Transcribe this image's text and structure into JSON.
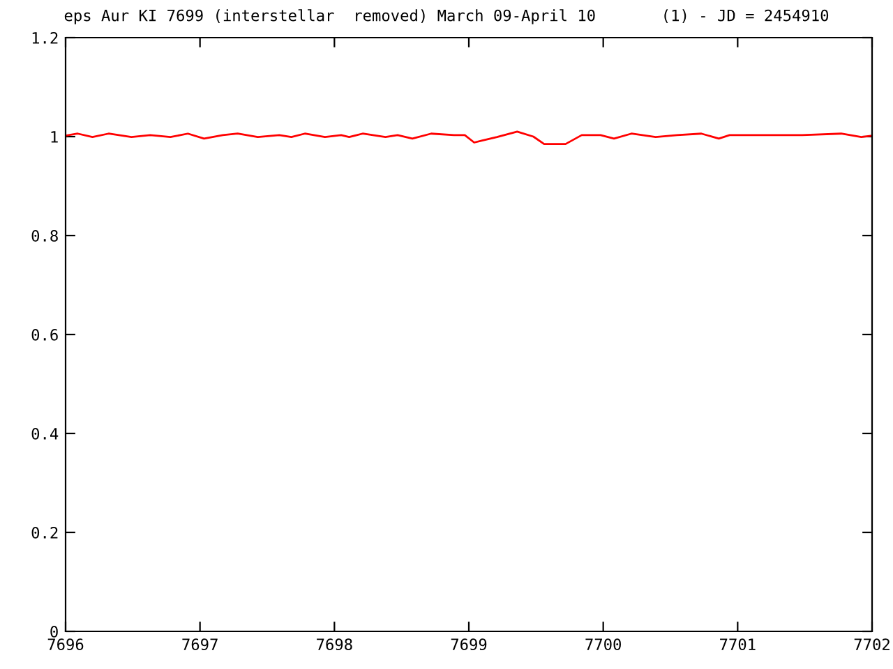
{
  "chart_data": {
    "type": "line",
    "title": "eps Aur KI 7699 (interstellar  removed) March 09-April 10       (1) - JD = 2454910",
    "series": [
      {
        "color": "#ff0000",
        "x": [
          7696.0,
          7696.09,
          7696.2,
          7696.32,
          7696.49,
          7696.63,
          7696.78,
          7696.91,
          7697.03,
          7697.17,
          7697.28,
          7697.43,
          7697.59,
          7697.68,
          7697.78,
          7697.93,
          7698.05,
          7698.11,
          7698.21,
          7698.38,
          7698.47,
          7698.58,
          7698.72,
          7698.89,
          7698.97,
          7699.04,
          7699.1,
          7699.21,
          7699.36,
          7699.48,
          7699.56,
          7699.72,
          7699.84,
          7699.98,
          7700.08,
          7700.21,
          7700.39,
          7700.55,
          7700.73,
          7700.86,
          7700.94,
          7701.22,
          7701.48,
          7701.77,
          7701.92,
          7702.0
        ],
        "values": [
          1.002,
          1.006,
          0.999,
          1.006,
          0.999,
          1.003,
          0.999,
          1.006,
          0.996,
          1.003,
          1.006,
          0.999,
          1.003,
          0.999,
          1.006,
          0.999,
          1.003,
          0.999,
          1.006,
          0.999,
          1.003,
          0.996,
          1.006,
          1.003,
          1.003,
          0.988,
          0.992,
          0.999,
          1.01,
          1.0,
          0.985,
          0.985,
          1.003,
          1.003,
          0.996,
          1.006,
          0.999,
          1.003,
          1.006,
          0.996,
          1.003,
          1.003,
          1.003,
          1.006,
          0.999,
          1.002
        ]
      }
    ],
    "xlim": [
      7696,
      7702
    ],
    "xticks": [
      7696,
      7697,
      7698,
      7699,
      7700,
      7701,
      7702
    ],
    "ylim": [
      0,
      1.2
    ],
    "yticks": [
      {
        "value": 0,
        "label": "0"
      },
      {
        "value": 0.2,
        "label": "0.2"
      },
      {
        "value": 0.4,
        "label": "0.4"
      },
      {
        "value": 0.6,
        "label": "0.6"
      },
      {
        "value": 0.8,
        "label": "0.8"
      },
      {
        "value": 1,
        "label": "1"
      },
      {
        "value": 1.2,
        "label": "1.2"
      }
    ],
    "grid": false,
    "legend": false,
    "marker": "none",
    "line_style": "solid"
  }
}
